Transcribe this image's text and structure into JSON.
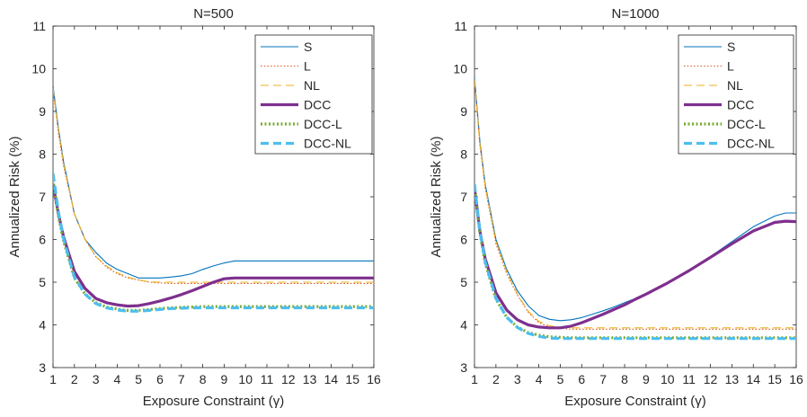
{
  "chart_data": [
    {
      "type": "line",
      "title": "N=500",
      "xlabel": "Exposure Constraint (γ)",
      "ylabel": "Annualized Risk (%)",
      "xlim": [
        1,
        16
      ],
      "ylim": [
        3,
        11
      ],
      "xticks": [
        1,
        2,
        3,
        4,
        5,
        6,
        7,
        8,
        9,
        10,
        11,
        12,
        13,
        14,
        15,
        16
      ],
      "yticks": [
        3,
        4,
        5,
        6,
        7,
        8,
        9,
        10,
        11
      ],
      "legend_position": "top-right",
      "x": [
        1,
        1.25,
        1.5,
        2,
        2.5,
        3,
        3.5,
        4,
        4.5,
        5,
        5.5,
        6,
        6.5,
        7,
        7.5,
        8,
        8.5,
        9,
        9.5,
        10,
        11,
        12,
        13,
        14,
        15,
        16
      ],
      "series": [
        {
          "name": "S",
          "style": "solid-thin",
          "color": "#0072BD",
          "values": [
            9.6,
            8.6,
            7.8,
            6.6,
            6.0,
            5.7,
            5.45,
            5.3,
            5.2,
            5.1,
            5.1,
            5.1,
            5.12,
            5.15,
            5.2,
            5.3,
            5.38,
            5.45,
            5.5,
            5.5,
            5.5,
            5.5,
            5.5,
            5.5,
            5.5,
            5.5
          ]
        },
        {
          "name": "L",
          "style": "dotted-thin",
          "color": "#D95319",
          "values": [
            9.5,
            8.5,
            7.7,
            6.6,
            6.0,
            5.6,
            5.35,
            5.2,
            5.1,
            5.05,
            5.0,
            4.98,
            4.97,
            4.97,
            4.97,
            4.97,
            4.97,
            4.97,
            4.97,
            4.97,
            4.97,
            4.97,
            4.97,
            4.97,
            4.97,
            4.97
          ]
        },
        {
          "name": "NL",
          "style": "dashed-thin",
          "color": "#EDB120",
          "values": [
            9.55,
            8.55,
            7.75,
            6.6,
            6.0,
            5.6,
            5.38,
            5.22,
            5.12,
            5.05,
            5.01,
            5.0,
            5.0,
            5.0,
            5.0,
            5.0,
            5.0,
            5.0,
            5.0,
            5.0,
            5.0,
            5.0,
            5.0,
            5.0,
            5.0,
            5.0
          ]
        },
        {
          "name": "DCC",
          "style": "solid-thick",
          "color": "#7E2F8E",
          "values": [
            7.3,
            6.6,
            6.05,
            5.25,
            4.85,
            4.62,
            4.52,
            4.47,
            4.44,
            4.45,
            4.5,
            4.56,
            4.63,
            4.71,
            4.8,
            4.9,
            5.0,
            5.08,
            5.1,
            5.1,
            5.1,
            5.1,
            5.1,
            5.1,
            5.1,
            5.1
          ]
        },
        {
          "name": "DCC-L",
          "style": "dotted-thick",
          "color": "#77AC30",
          "values": [
            7.4,
            6.55,
            5.95,
            5.1,
            4.72,
            4.52,
            4.42,
            4.37,
            4.34,
            4.34,
            4.36,
            4.38,
            4.4,
            4.41,
            4.42,
            4.43,
            4.43,
            4.43,
            4.43,
            4.43,
            4.43,
            4.43,
            4.43,
            4.43,
            4.43,
            4.43
          ]
        },
        {
          "name": "DCC-NL",
          "style": "dashed-thick",
          "color": "#4DBEEE",
          "values": [
            7.55,
            6.65,
            6.0,
            5.12,
            4.72,
            4.5,
            4.4,
            4.35,
            4.32,
            4.32,
            4.34,
            4.36,
            4.38,
            4.39,
            4.4,
            4.4,
            4.4,
            4.4,
            4.4,
            4.4,
            4.4,
            4.4,
            4.4,
            4.4,
            4.4,
            4.4
          ]
        }
      ]
    },
    {
      "type": "line",
      "title": "N=1000",
      "xlabel": "Exposure Constraint (γ)",
      "ylabel": "Annualized Risk (%)",
      "xlim": [
        1,
        16
      ],
      "ylim": [
        3,
        11
      ],
      "xticks": [
        1,
        2,
        3,
        4,
        5,
        6,
        7,
        8,
        9,
        10,
        11,
        12,
        13,
        14,
        15,
        16
      ],
      "yticks": [
        3,
        4,
        5,
        6,
        7,
        8,
        9,
        10,
        11
      ],
      "legend_position": "top-right",
      "x": [
        1,
        1.25,
        1.5,
        2,
        2.5,
        3,
        3.5,
        4,
        4.5,
        5,
        5.5,
        6,
        6.5,
        7,
        7.5,
        8,
        8.5,
        9,
        9.5,
        10,
        11,
        12,
        13,
        14,
        15,
        15.5,
        16
      ],
      "series": [
        {
          "name": "S",
          "style": "solid-thin",
          "color": "#0072BD",
          "values": [
            9.8,
            8.3,
            7.3,
            6.0,
            5.3,
            4.8,
            4.45,
            4.22,
            4.13,
            4.1,
            4.12,
            4.17,
            4.25,
            4.33,
            4.42,
            4.52,
            4.62,
            4.73,
            4.85,
            4.98,
            5.27,
            5.6,
            5.95,
            6.3,
            6.55,
            6.62,
            6.62
          ]
        },
        {
          "name": "L",
          "style": "dotted-thin",
          "color": "#D95319",
          "values": [
            9.7,
            8.2,
            7.2,
            5.9,
            5.2,
            4.7,
            4.3,
            4.05,
            3.95,
            3.92,
            3.9,
            3.9,
            3.9,
            3.9,
            3.9,
            3.9,
            3.9,
            3.9,
            3.9,
            3.9,
            3.9,
            3.9,
            3.9,
            3.9,
            3.9,
            3.9,
            3.9
          ]
        },
        {
          "name": "NL",
          "style": "dashed-thin",
          "color": "#EDB120",
          "values": [
            9.75,
            8.25,
            7.25,
            5.95,
            5.25,
            4.72,
            4.32,
            4.08,
            3.98,
            3.94,
            3.93,
            3.93,
            3.93,
            3.93,
            3.93,
            3.93,
            3.93,
            3.93,
            3.93,
            3.93,
            3.93,
            3.93,
            3.93,
            3.93,
            3.93,
            3.93,
            3.93
          ]
        },
        {
          "name": "DCC",
          "style": "solid-thick",
          "color": "#7E2F8E",
          "values": [
            7.2,
            6.2,
            5.55,
            4.75,
            4.35,
            4.12,
            4.0,
            3.95,
            3.93,
            3.93,
            3.97,
            4.05,
            4.15,
            4.25,
            4.36,
            4.47,
            4.6,
            4.72,
            4.85,
            4.98,
            5.27,
            5.58,
            5.9,
            6.2,
            6.4,
            6.43,
            6.42
          ]
        },
        {
          "name": "DCC-L",
          "style": "dotted-thick",
          "color": "#77AC30",
          "values": [
            7.25,
            6.15,
            5.45,
            4.6,
            4.18,
            3.95,
            3.82,
            3.76,
            3.72,
            3.71,
            3.7,
            3.7,
            3.7,
            3.7,
            3.7,
            3.7,
            3.7,
            3.7,
            3.7,
            3.7,
            3.7,
            3.7,
            3.7,
            3.7,
            3.7,
            3.7,
            3.7
          ]
        },
        {
          "name": "DCC-NL",
          "style": "dashed-thick",
          "color": "#4DBEEE",
          "values": [
            7.3,
            6.2,
            5.48,
            4.62,
            4.18,
            3.94,
            3.8,
            3.73,
            3.69,
            3.68,
            3.68,
            3.68,
            3.68,
            3.68,
            3.68,
            3.68,
            3.68,
            3.68,
            3.68,
            3.68,
            3.68,
            3.68,
            3.68,
            3.68,
            3.68,
            3.68,
            3.68
          ]
        }
      ]
    }
  ]
}
